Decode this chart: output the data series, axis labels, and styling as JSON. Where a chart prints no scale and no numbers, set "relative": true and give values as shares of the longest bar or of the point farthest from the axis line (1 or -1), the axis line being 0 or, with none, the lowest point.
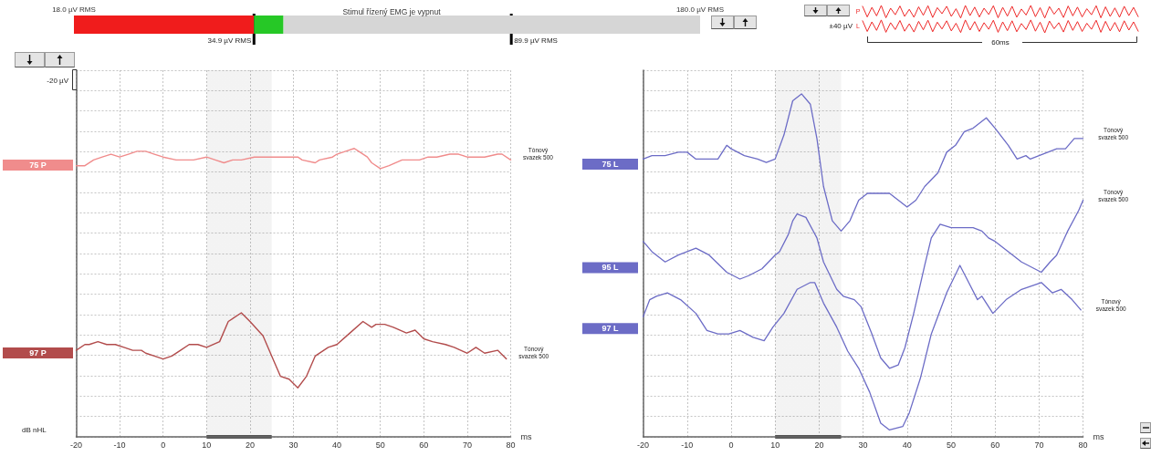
{
  "chart_data": [
    {
      "type": "bar",
      "orientation": "horizontal",
      "title": "Stimul řízený EMG je vypnut",
      "categories": [
        null
      ],
      "log": "x",
      "xlim": [
        18,
        180
      ],
      "xticks": [
        {
          "value": 18,
          "label": "18.0 µV RMS"
        },
        {
          "value": 180,
          "label": "180.0 µV RMS"
        }
      ],
      "tick_labels": "x",
      "series": [
        {
          "color": "#f01c1c",
          "values": [
            16.9
          ],
          "base": [
            18
          ]
        },
        {
          "color": "#26c826",
          "values": [
            4.0
          ],
          "base": [
            34.9
          ]
        },
        {
          "color": "#d6d6d6",
          "values": [
            141.1
          ],
          "base": [
            38.9
          ]
        }
      ],
      "ref_lines": [
        {
          "axis": "x",
          "value": 34.9,
          "label": "34.9 µV RMS",
          "color": "#000000"
        },
        {
          "axis": "x",
          "value": 89.9,
          "label": "89.9 µV RMS",
          "color": "#000000"
        }
      ]
    },
    {
      "type": "line",
      "relative": true,
      "tick_labels": false,
      "line_style": "solid",
      "annotations": [
        "±40 µV",
        "60ms"
      ],
      "categories": [
        null,
        null,
        null,
        null,
        null,
        null,
        null,
        null,
        null,
        null,
        null,
        null,
        null,
        null,
        null,
        null,
        null,
        null,
        null,
        null,
        null,
        null,
        null,
        null,
        null,
        null,
        null,
        null,
        null,
        null,
        null,
        null,
        null,
        null,
        null,
        null,
        null,
        null,
        null,
        null,
        null,
        null,
        null,
        null,
        null,
        null,
        null,
        null,
        null,
        null,
        null,
        null,
        null,
        null,
        null,
        null,
        null,
        null,
        null,
        null
      ],
      "series": [
        {
          "name": "P",
          "color": "#ee2828",
          "values": [
            0.97,
            0.58,
            0.93,
            0.62,
            1,
            0.55,
            0.9,
            0.66,
            0.98,
            0.6,
            0.86,
            0.57,
            0.95,
            0.64,
            0.99,
            0.56,
            0.92,
            0.7,
            0.97,
            0.6,
            0.88,
            0.54,
            1,
            0.63,
            0.94,
            0.58,
            0.9,
            0.67,
            0.99,
            0.55,
            0.93,
            0.61,
            0.97,
            0.57,
            0.87,
            0.65,
            1,
            0.59,
            0.92,
            0.54,
            0.96,
            0.68,
            0.9,
            0.56,
            0.98,
            0.62,
            0.94,
            0.58,
            0.88,
            0.66,
            0.99,
            0.55,
            0.95,
            0.6,
            0.91,
            0.57,
            0.97,
            0.63,
            0.93,
            0.59
          ]
        },
        {
          "name": "L",
          "color": "#ee2828",
          "values": [
            0.44,
            0.05,
            0.4,
            0.09,
            0.47,
            0.02,
            0.37,
            0.12,
            0.45,
            0.06,
            0.33,
            0.03,
            0.42,
            0.11,
            0.46,
            0.04,
            0.39,
            0.14,
            0.44,
            0.07,
            0.35,
            0.01,
            0.47,
            0.1,
            0.41,
            0.05,
            0.37,
            0.13,
            0.46,
            0.02,
            0.4,
            0.08,
            0.44,
            0.04,
            0.34,
            0.12,
            0.47,
            0.06,
            0.39,
            0,
            0.43,
            0.15,
            0.37,
            0.03,
            0.45,
            0.09,
            0.41,
            0.05,
            0.35,
            0.13,
            0.46,
            0.02,
            0.42,
            0.07,
            0.38,
            0.04,
            0.44,
            0.1,
            0.4,
            0.06
          ]
        }
      ]
    },
    {
      "type": "line",
      "relative": true,
      "tick_labels": "x",
      "grid": true,
      "line_style": "solid",
      "xlabel": "ms",
      "xlim": [
        -20,
        80
      ],
      "xticks": [
        -20,
        -10,
        0,
        10,
        20,
        30,
        40,
        50,
        60,
        70,
        80
      ],
      "bands": [
        {
          "axis": "x",
          "from": 10,
          "to": 25,
          "color": "#555555"
        }
      ],
      "annotations": [
        "-20 µV",
        "dB nHL",
        {
          "text": "Tónový\nsvazek 500",
          "x": 80,
          "y": 0.96
        },
        {
          "text": "Tónový\nsvazek 500",
          "x": 79,
          "y": 0.27
        }
      ],
      "series": [
        {
          "name": "75 P",
          "color": "#f08c8c",
          "x": [
            -20,
            -18,
            -16,
            -14,
            -12,
            -10,
            -8,
            -6,
            -4,
            -2,
            0,
            3,
            5,
            7,
            10,
            12,
            14,
            16,
            18,
            21,
            23,
            26,
            27,
            29,
            31,
            32,
            35,
            36,
            39,
            40,
            42,
            44,
            45,
            47,
            48,
            50,
            52,
            55,
            57,
            59,
            61,
            63,
            66,
            68,
            70,
            72,
            74,
            77,
            78,
            80
          ],
          "values": [
            0.94,
            0.94,
            0.96,
            0.97,
            0.98,
            0.97,
            0.98,
            0.99,
            0.99,
            0.98,
            0.97,
            0.96,
            0.96,
            0.96,
            0.97,
            0.96,
            0.95,
            0.96,
            0.96,
            0.97,
            0.97,
            0.97,
            0.97,
            0.97,
            0.97,
            0.96,
            0.95,
            0.96,
            0.97,
            0.98,
            0.99,
            1,
            0.99,
            0.97,
            0.95,
            0.93,
            0.94,
            0.96,
            0.96,
            0.96,
            0.97,
            0.97,
            0.98,
            0.98,
            0.97,
            0.97,
            0.97,
            0.98,
            0.98,
            0.96
          ]
        },
        {
          "name": "97 P",
          "color": "#b24c4c",
          "x": [
            -20,
            -18,
            -17,
            -15,
            -13,
            -11,
            -9,
            -7,
            -5,
            -4,
            -2,
            0,
            2,
            4,
            6,
            8,
            10,
            13,
            15,
            18,
            20,
            23,
            25,
            27,
            29,
            31,
            33,
            35,
            38,
            40,
            43,
            46,
            48,
            49,
            51,
            53,
            56,
            58,
            60,
            62,
            65,
            67,
            70,
            72,
            74,
            77,
            79
          ],
          "values": [
            0.3,
            0.32,
            0.32,
            0.33,
            0.32,
            0.32,
            0.31,
            0.3,
            0.3,
            0.29,
            0.28,
            0.27,
            0.28,
            0.3,
            0.32,
            0.32,
            0.31,
            0.33,
            0.4,
            0.43,
            0.4,
            0.35,
            0.28,
            0.21,
            0.2,
            0.17,
            0.21,
            0.28,
            0.31,
            0.32,
            0.36,
            0.4,
            0.38,
            0.39,
            0.39,
            0.38,
            0.36,
            0.37,
            0.34,
            0.33,
            0.32,
            0.31,
            0.29,
            0.31,
            0.29,
            0.3,
            0.27
          ]
        }
      ]
    },
    {
      "type": "line",
      "relative": true,
      "tick_labels": "x",
      "grid": true,
      "line_style": "solid",
      "xlabel": "ms",
      "xlim": [
        -20,
        80
      ],
      "xticks": [
        -20,
        -10,
        0,
        10,
        20,
        30,
        40,
        50,
        60,
        70,
        80
      ],
      "bands": [
        {
          "axis": "x",
          "from": 10,
          "to": 25,
          "color": "#555555"
        }
      ],
      "annotations": [
        {
          "text": "Tónový\nsvazek 500",
          "x": 80,
          "y": 0.87
        },
        {
          "text": "Tónový\nsvazek 500",
          "x": 80,
          "y": 0.69
        },
        {
          "text": "Tónový\nsvazek 500",
          "x": 79.5,
          "y": 0.37
        }
      ],
      "series": [
        {
          "name": "75 L",
          "color": "#6c6cc6",
          "x": [
            -20,
            -18,
            -15,
            -12,
            -10,
            -8,
            -6,
            -3,
            -1,
            0,
            3,
            6,
            8,
            10,
            12,
            14,
            16,
            18,
            19.5,
            21,
            23,
            25,
            27,
            29,
            31,
            33,
            36,
            38,
            40,
            42,
            44,
            47,
            49,
            51,
            53,
            55,
            58,
            60,
            63,
            65,
            67,
            68,
            70,
            72,
            74,
            76,
            78,
            80
          ],
          "values": [
            0.81,
            0.82,
            0.82,
            0.83,
            0.83,
            0.81,
            0.81,
            0.81,
            0.85,
            0.84,
            0.82,
            0.81,
            0.8,
            0.81,
            0.88,
            0.98,
            1,
            0.97,
            0.87,
            0.73,
            0.63,
            0.6,
            0.63,
            0.69,
            0.71,
            0.71,
            0.71,
            0.69,
            0.67,
            0.69,
            0.73,
            0.77,
            0.83,
            0.85,
            0.89,
            0.9,
            0.93,
            0.9,
            0.85,
            0.81,
            0.82,
            0.81,
            0.82,
            0.83,
            0.84,
            0.84,
            0.87,
            0.87
          ]
        },
        {
          "name": "95 L",
          "color": "#6c6cc6",
          "x": [
            -20,
            -18,
            -15,
            -12,
            -10,
            -8,
            -5,
            -1,
            2,
            4,
            7,
            10,
            11,
            13,
            14,
            15,
            17,
            19.5,
            21,
            24,
            25.5,
            28,
            29.5,
            32,
            34,
            36,
            38,
            39.5,
            41.5,
            44,
            45.5,
            47.5,
            50,
            52,
            55,
            57,
            58.5,
            60,
            63,
            66,
            69,
            70.5,
            72.5,
            74,
            76.5,
            79,
            80
          ],
          "values": [
            0.57,
            0.54,
            0.51,
            0.53,
            0.54,
            0.55,
            0.53,
            0.48,
            0.46,
            0.47,
            0.49,
            0.53,
            0.54,
            0.59,
            0.63,
            0.65,
            0.64,
            0.58,
            0.51,
            0.43,
            0.41,
            0.4,
            0.38,
            0.3,
            0.23,
            0.2,
            0.21,
            0.26,
            0.36,
            0.5,
            0.58,
            0.62,
            0.61,
            0.61,
            0.61,
            0.6,
            0.58,
            0.57,
            0.54,
            0.51,
            0.49,
            0.48,
            0.51,
            0.53,
            0.6,
            0.66,
            0.69
          ]
        },
        {
          "name": "97 L",
          "color": "#6c6cc6",
          "x": [
            -20,
            -18.5,
            -17,
            -14.5,
            -11.5,
            -8,
            -5.5,
            -3,
            -0.5,
            2,
            5,
            7.5,
            9.5,
            12,
            15,
            18,
            19,
            21,
            24,
            26.5,
            29,
            31.5,
            34,
            36,
            39,
            40.5,
            43,
            45.5,
            49,
            52,
            54,
            56,
            57,
            59.5,
            62.5,
            66,
            70.5,
            73,
            75,
            77.5,
            79.5
          ],
          "values": [
            0.35,
            0.4,
            0.41,
            0.42,
            0.4,
            0.36,
            0.31,
            0.3,
            0.3,
            0.31,
            0.29,
            0.28,
            0.32,
            0.36,
            0.43,
            0.45,
            0.45,
            0.39,
            0.32,
            0.25,
            0.2,
            0.13,
            0.04,
            0.02,
            0.03,
            0.07,
            0.17,
            0.3,
            0.42,
            0.5,
            0.45,
            0.4,
            0.41,
            0.36,
            0.4,
            0.43,
            0.45,
            0.42,
            0.43,
            0.4,
            0.37
          ]
        }
      ]
    }
  ]
}
